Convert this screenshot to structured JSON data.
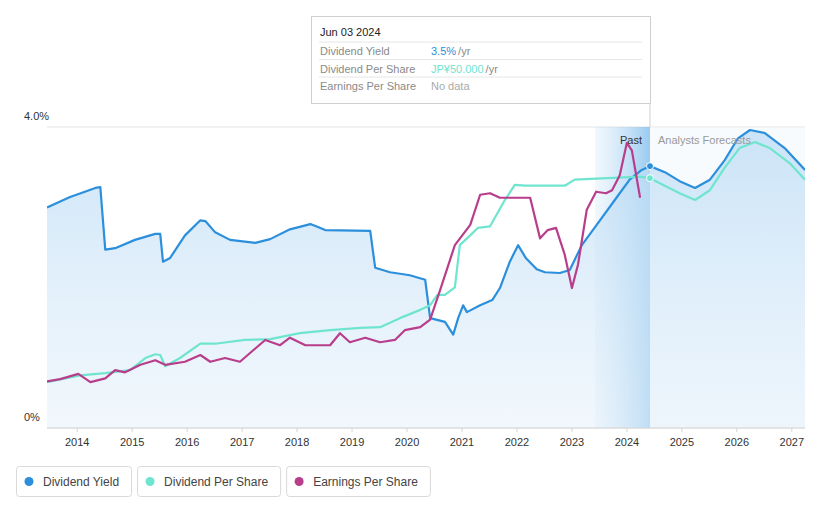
{
  "chart_data": {
    "type": "line",
    "xlim": [
      2013.45,
      2027.24
    ],
    "xticks": [
      2014,
      2015,
      2016,
      2017,
      2018,
      2019,
      2020,
      2021,
      2022,
      2023,
      2024,
      2025,
      2026,
      2027
    ],
    "ylim": [
      0,
      4
    ],
    "yticks": [
      {
        "value": 0,
        "label": "0%"
      },
      {
        "value": 4,
        "label": "4.0%"
      }
    ],
    "grid": true,
    "legend": "bottom-left",
    "annotations": [
      {
        "text": "Past",
        "x": [
          2023.42,
          2024.42
        ]
      },
      {
        "text": "Analysts Forecasts",
        "x": [
          2024.42,
          2027.24
        ]
      }
    ],
    "tooltip": {
      "x": 2024.42,
      "title": "Jun 03 2024",
      "rows": [
        {
          "label": "Dividend Yield",
          "value": "3.5%",
          "unit": "/yr"
        },
        {
          "label": "Dividend Per Share",
          "value": "JP¥50.000",
          "unit": "/yr"
        },
        {
          "label": "Earnings Per Share",
          "value": "No data"
        }
      ]
    },
    "series": [
      {
        "name": "Dividend Yield",
        "color": "#2b8fdc",
        "type": "area",
        "x": [
          2013.45,
          2013.87,
          2014.33,
          2014.42,
          2014.51,
          2014.69,
          2015.05,
          2015.42,
          2015.51,
          2015.56,
          2015.69,
          2015.96,
          2016.24,
          2016.33,
          2016.51,
          2016.78,
          2017.24,
          2017.51,
          2017.87,
          2018.24,
          2018.38,
          2018.51,
          2019.33,
          2019.42,
          2019.69,
          2020.05,
          2020.33,
          2020.42,
          2020.69,
          2020.84,
          2020.93,
          2021.02,
          2021.09,
          2021.33,
          2021.55,
          2021.69,
          2021.87,
          2022.02,
          2022.16,
          2022.36,
          2022.51,
          2022.78,
          2022.96,
          2023.18,
          2023.51,
          2023.78,
          2024.05,
          2024.27,
          2024.42,
          2024.69,
          2024.96,
          2025.24,
          2025.51,
          2025.78,
          2026.02,
          2026.24,
          2026.51,
          2026.87,
          2027.24
        ],
        "values": [
          2.93,
          3.07,
          3.19,
          3.2,
          2.37,
          2.39,
          2.5,
          2.58,
          2.58,
          2.21,
          2.26,
          2.56,
          2.76,
          2.75,
          2.6,
          2.5,
          2.46,
          2.51,
          2.64,
          2.71,
          2.67,
          2.63,
          2.62,
          2.13,
          2.07,
          2.03,
          1.97,
          1.46,
          1.41,
          1.24,
          1.46,
          1.63,
          1.54,
          1.63,
          1.7,
          1.86,
          2.21,
          2.43,
          2.26,
          2.11,
          2.07,
          2.06,
          2.1,
          2.43,
          2.76,
          3.03,
          3.3,
          3.43,
          3.48,
          3.4,
          3.28,
          3.19,
          3.3,
          3.56,
          3.85,
          3.96,
          3.92,
          3.72,
          3.43
        ]
      },
      {
        "name": "Dividend Per Share",
        "color": "#6fe5cf",
        "type": "line",
        "x": [
          2013.45,
          2014.05,
          2014.51,
          2014.96,
          2015.24,
          2015.42,
          2015.51,
          2015.6,
          2015.87,
          2016.24,
          2016.51,
          2017.05,
          2017.51,
          2018.05,
          2018.6,
          2019.15,
          2019.51,
          2019.87,
          2020.24,
          2020.42,
          2020.55,
          2020.69,
          2020.87,
          2020.96,
          2021.15,
          2021.29,
          2021.51,
          2021.78,
          2021.96,
          2022.15,
          2022.87,
          2023.05,
          2024.24,
          2024.42,
          2024.69,
          2024.96,
          2025.24,
          2025.51,
          2025.78,
          2026.05,
          2026.33,
          2026.6,
          2026.96,
          2027.24
        ],
        "values": [
          0.61,
          0.7,
          0.73,
          0.77,
          0.93,
          0.98,
          0.97,
          0.82,
          0.93,
          1.12,
          1.12,
          1.17,
          1.18,
          1.26,
          1.3,
          1.33,
          1.34,
          1.46,
          1.57,
          1.63,
          1.77,
          1.77,
          1.87,
          2.43,
          2.56,
          2.66,
          2.68,
          3.03,
          3.23,
          3.22,
          3.22,
          3.3,
          3.34,
          3.32,
          3.22,
          3.12,
          3.03,
          3.16,
          3.46,
          3.72,
          3.8,
          3.72,
          3.52,
          3.3
        ]
      },
      {
        "name": "Earnings Per Share",
        "color": "#b83e8c",
        "type": "line",
        "x": [
          2013.45,
          2013.69,
          2014.02,
          2014.24,
          2014.51,
          2014.69,
          2014.87,
          2015.15,
          2015.42,
          2015.6,
          2015.96,
          2016.24,
          2016.42,
          2016.69,
          2016.96,
          2017.42,
          2017.69,
          2017.87,
          2018.15,
          2018.6,
          2018.78,
          2018.96,
          2019.24,
          2019.51,
          2019.78,
          2019.96,
          2020.24,
          2020.42,
          2020.6,
          2020.87,
          2021.15,
          2021.33,
          2021.51,
          2021.69,
          2022.24,
          2022.42,
          2022.56,
          2022.71,
          2022.87,
          2023.0,
          2023.11,
          2023.27,
          2023.44,
          2023.62,
          2023.73,
          2023.87,
          2024.0,
          2024.09,
          2024.24
        ],
        "values": [
          0.62,
          0.65,
          0.72,
          0.61,
          0.66,
          0.77,
          0.74,
          0.84,
          0.9,
          0.84,
          0.88,
          0.97,
          0.88,
          0.93,
          0.88,
          1.17,
          1.1,
          1.2,
          1.1,
          1.1,
          1.26,
          1.14,
          1.2,
          1.14,
          1.17,
          1.3,
          1.34,
          1.44,
          1.83,
          2.43,
          2.7,
          3.1,
          3.12,
          3.06,
          3.06,
          2.52,
          2.63,
          2.66,
          2.3,
          1.86,
          2.17,
          2.9,
          3.14,
          3.12,
          3.16,
          3.36,
          3.79,
          3.69,
          3.06
        ]
      }
    ]
  }
}
